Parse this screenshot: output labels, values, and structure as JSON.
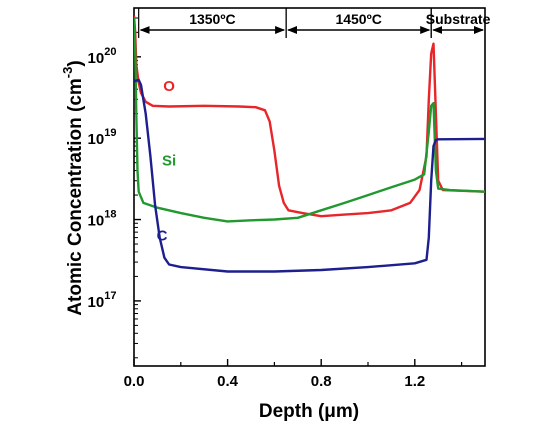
{
  "chart_data": {
    "type": "line",
    "title": "",
    "xlabel": "Depth (μm)",
    "ylabel": "Atomic Concentration (cm",
    "ylabel_sup": "-3",
    "xlim": [
      0.0,
      1.5
    ],
    "ylim_log10": [
      16.2,
      20.6
    ],
    "y_log_scale": true,
    "grid": false,
    "x_ticks": [
      {
        "value": 0.0,
        "label": "0.0"
      },
      {
        "value": 0.4,
        "label": "0.4"
      },
      {
        "value": 0.8,
        "label": "0.8"
      },
      {
        "value": 1.2,
        "label": "1.2"
      }
    ],
    "y_ticks": [
      {
        "exp": 17,
        "base": "10",
        "sup": "17"
      },
      {
        "exp": 18,
        "base": "10",
        "sup": "18"
      },
      {
        "exp": 19,
        "base": "10",
        "sup": "19"
      },
      {
        "exp": 20,
        "base": "10",
        "sup": "20"
      }
    ],
    "regions": [
      {
        "label": "1350ºC",
        "x_start": 0.02,
        "x_end": 0.65
      },
      {
        "label": "1450ºC",
        "x_start": 0.65,
        "x_end": 1.27
      },
      {
        "label": "Substrate",
        "x_start": 1.27,
        "x_end": 1.5
      }
    ],
    "series": [
      {
        "name": "O",
        "color": "#e8262a",
        "label_at": {
          "x": 0.15,
          "y": 3.8e+19
        },
        "points": [
          [
            0.0,
            3.2e+20
          ],
          [
            0.005,
            2e+20
          ],
          [
            0.01,
            8e+19
          ],
          [
            0.02,
            4.8e+19
          ],
          [
            0.03,
            3.6e+19
          ],
          [
            0.05,
            2.8e+19
          ],
          [
            0.08,
            2.5e+19
          ],
          [
            0.15,
            2.45e+19
          ],
          [
            0.3,
            2.5e+19
          ],
          [
            0.45,
            2.45e+19
          ],
          [
            0.52,
            2.4e+19
          ],
          [
            0.56,
            2.2e+19
          ],
          [
            0.58,
            1.6e+19
          ],
          [
            0.6,
            7e+18
          ],
          [
            0.62,
            2.6e+18
          ],
          [
            0.64,
            1.6e+18
          ],
          [
            0.66,
            1.3e+18
          ],
          [
            0.72,
            1.2e+18
          ],
          [
            0.8,
            1.1e+18
          ],
          [
            0.9,
            1.15e+18
          ],
          [
            1.0,
            1.2e+18
          ],
          [
            1.1,
            1.3e+18
          ],
          [
            1.18,
            1.6e+18
          ],
          [
            1.22,
            2.3e+18
          ],
          [
            1.25,
            6e+18
          ],
          [
            1.26,
            3e+19
          ],
          [
            1.27,
            1.1e+20
          ],
          [
            1.28,
            1.45e+20
          ],
          [
            1.29,
            2e+19
          ],
          [
            1.3,
            3e+18
          ],
          [
            1.32,
            2.3e+18
          ],
          [
            1.5,
            2.2e+18
          ]
        ]
      },
      {
        "name": "Si",
        "color": "#22992e",
        "label_at": {
          "x": 0.15,
          "y": 4.6e+18
        },
        "points": [
          [
            0.0,
            3e+20
          ],
          [
            0.005,
            1.2e+20
          ],
          [
            0.01,
            2e+19
          ],
          [
            0.015,
            4e+18
          ],
          [
            0.02,
            2.2e+18
          ],
          [
            0.04,
            1.6e+18
          ],
          [
            0.1,
            1.4e+18
          ],
          [
            0.2,
            1.2e+18
          ],
          [
            0.3,
            1.05e+18
          ],
          [
            0.4,
            9.5e+17
          ],
          [
            0.5,
            9.8e+17
          ],
          [
            0.6,
            1e+18
          ],
          [
            0.7,
            1.05e+18
          ],
          [
            0.8,
            1.3e+18
          ],
          [
            0.9,
            1.6e+18
          ],
          [
            1.0,
            2e+18
          ],
          [
            1.1,
            2.5e+18
          ],
          [
            1.2,
            3.1e+18
          ],
          [
            1.24,
            3.6e+18
          ],
          [
            1.26,
            1.2e+19
          ],
          [
            1.27,
            2.5e+19
          ],
          [
            1.28,
            2.7e+19
          ],
          [
            1.29,
            4e+18
          ],
          [
            1.3,
            2.4e+18
          ],
          [
            1.35,
            2.3e+18
          ],
          [
            1.5,
            2.2e+18
          ]
        ]
      },
      {
        "name": "C",
        "color": "#1d1f8e",
        "label_at": {
          "x": 0.12,
          "y": 5.5e+17
        },
        "points": [
          [
            0.0,
            5e+19
          ],
          [
            0.02,
            5.2e+19
          ],
          [
            0.03,
            4.5e+19
          ],
          [
            0.05,
            2e+19
          ],
          [
            0.07,
            6e+18
          ],
          [
            0.09,
            1.5e+18
          ],
          [
            0.11,
            6e+17
          ],
          [
            0.13,
            3.4e+17
          ],
          [
            0.15,
            2.8e+17
          ],
          [
            0.2,
            2.6e+17
          ],
          [
            0.4,
            2.3e+17
          ],
          [
            0.6,
            2.3e+17
          ],
          [
            0.8,
            2.4e+17
          ],
          [
            1.0,
            2.6e+17
          ],
          [
            1.2,
            2.9e+17
          ],
          [
            1.25,
            3.2e+17
          ],
          [
            1.26,
            6e+17
          ],
          [
            1.27,
            3e+18
          ],
          [
            1.28,
            8e+18
          ],
          [
            1.29,
            9.5e+18
          ],
          [
            1.3,
            9.7e+18
          ],
          [
            1.5,
            9.8e+18
          ]
        ]
      }
    ]
  }
}
